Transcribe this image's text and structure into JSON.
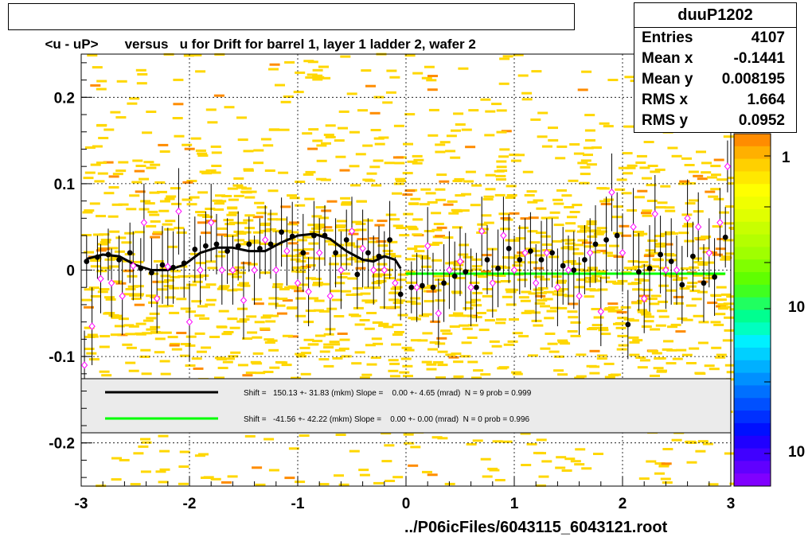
{
  "title": "<u - uP>       versus   u for Drift for barrel 1, layer 1 ladder 2, wafer 2",
  "stats": {
    "name": "duuP1202",
    "rows": [
      {
        "label": "Entries",
        "value": "4107"
      },
      {
        "label": "Mean x",
        "value": "-0.1441"
      },
      {
        "label": "Mean y",
        "value": "0.008195"
      },
      {
        "label": "RMS x",
        "value": "1.664"
      },
      {
        "label": "RMS y",
        "value": "0.0952"
      }
    ]
  },
  "footer": "../P06icFiles/6043115_6043121.root",
  "colors": {
    "scatter": "#ffd700",
    "hot": "#ff8c00",
    "profile": "#000000",
    "fit_black": "#000000",
    "fit_green": "#00ff00",
    "marker_open": "#ff00ff"
  },
  "chart_data": {
    "type": "scatter",
    "xlim": [
      -3,
      3
    ],
    "ylim": [
      -0.25,
      0.25
    ],
    "x_ticks": [
      -3,
      -2,
      -1,
      0,
      1,
      2,
      3
    ],
    "x_tick_labels": [
      "-3",
      "-2",
      "-1",
      "0",
      "1",
      "2",
      "3"
    ],
    "y_ticks": [
      -0.2,
      -0.1,
      0,
      0.1,
      0.2
    ],
    "y_tick_labels": [
      "-0.2",
      "-0.1",
      "0",
      "0.1",
      "0.2"
    ],
    "grid": true,
    "colorbar": {
      "labels": [
        "1",
        "10",
        "10"
      ]
    },
    "legend": [
      {
        "text": "Shift =   150.13 +- 31.83 (mkm) Slope =    0.00 +- 4.65 (mrad)  N = 9 prob = 0.999",
        "color": "#000000"
      },
      {
        "text": "Shift =   -41.56 +- 42.22 (mkm) Slope =    0.00 +- 0.00 (mrad)  N = 0 prob = 0.996",
        "color": "#00ff00"
      }
    ],
    "profile_filled": {
      "x": [
        -2.95,
        -2.85,
        -2.75,
        -2.65,
        -2.55,
        -2.45,
        -2.35,
        -2.25,
        -2.15,
        -2.05,
        -1.95,
        -1.85,
        -1.75,
        -1.65,
        -1.55,
        -1.45,
        -1.35,
        -1.25,
        -1.15,
        -1.05,
        -0.95,
        -0.85,
        -0.75,
        -0.65,
        -0.55,
        -0.45,
        -0.35,
        -0.25,
        -0.15,
        -0.05,
        0.05,
        0.15,
        0.25,
        0.35,
        0.45,
        0.55,
        0.65,
        0.75,
        0.85,
        0.95,
        1.05,
        1.15,
        1.25,
        1.35,
        1.45,
        1.55,
        1.65,
        1.75,
        1.85,
        1.95,
        2.05,
        2.15,
        2.25,
        2.35,
        2.45,
        2.55,
        2.65,
        2.75,
        2.85,
        2.95
      ],
      "y": [
        0.01,
        0.015,
        0.018,
        0.012,
        0.02,
        0.002,
        -0.003,
        0.006,
        0.003,
        0.008,
        0.024,
        0.028,
        0.03,
        0.022,
        0.028,
        0.03,
        0.025,
        0.03,
        0.044,
        0.039,
        0.02,
        0.04,
        0.04,
        0.02,
        0.035,
        -0.005,
        0.02,
        0.016,
        0.035,
        -0.028,
        -0.02,
        -0.018,
        -0.02,
        -0.015,
        -0.007,
        -0.002,
        -0.02,
        0.012,
        0.002,
        0.025,
        0.012,
        0.022,
        0.012,
        0.02,
        0.005,
        0.0,
        0.012,
        0.03,
        0.035,
        0.04,
        -0.063,
        -0.002,
        0.002,
        0.018,
        0.01,
        -0.017,
        0.016,
        -0.015,
        -0.008,
        0.038
      ],
      "err": [
        0.03,
        0.025,
        0.03,
        0.028,
        0.035,
        0.035,
        0.04,
        0.045,
        0.042,
        0.04,
        0.038,
        0.04,
        0.035,
        0.038,
        0.04,
        0.032,
        0.035,
        0.04,
        0.04,
        0.04,
        0.045,
        0.04,
        0.035,
        0.04,
        0.035,
        0.04,
        0.04,
        0.035,
        0.045,
        0.03,
        0.03,
        0.035,
        0.04,
        0.045,
        0.04,
        0.045,
        0.04,
        0.04,
        0.045,
        0.04,
        0.04,
        0.045,
        0.045,
        0.04,
        0.045,
        0.045,
        0.04,
        0.045,
        0.05,
        0.05,
        0.04,
        0.045,
        0.05,
        0.045,
        0.05,
        0.045,
        0.04,
        0.045,
        0.045,
        0.035
      ]
    },
    "profile_open": {
      "x": [
        -2.97,
        -2.9,
        -2.82,
        -2.72,
        -2.62,
        -2.52,
        -2.42,
        -2.3,
        -2.2,
        -2.1,
        -2.0,
        -1.9,
        -1.8,
        -1.7,
        -1.6,
        -1.5,
        -1.4,
        -1.3,
        -1.2,
        -1.1,
        -1.0,
        -0.9,
        -0.8,
        -0.7,
        -0.6,
        -0.5,
        -0.4,
        -0.3,
        -0.2,
        -0.1,
        0.1,
        0.2,
        0.3,
        0.4,
        0.5,
        0.6,
        0.7,
        0.8,
        0.9,
        1.0,
        1.1,
        1.2,
        1.3,
        1.4,
        1.5,
        1.6,
        1.7,
        1.8,
        1.9,
        2.0,
        2.1,
        2.2,
        2.3,
        2.4,
        2.5,
        2.6,
        2.7,
        2.8,
        2.9,
        2.97
      ],
      "y": [
        -0.11,
        -0.065,
        -0.01,
        -0.015,
        -0.03,
        0.005,
        0.055,
        -0.033,
        0.004,
        0.068,
        -0.06,
        0.0,
        0.055,
        0.0,
        0.0,
        -0.035,
        0.0,
        0.035,
        0.0,
        0.022,
        -0.015,
        -0.025,
        0.02,
        -0.03,
        0.0,
        0.045,
        0.025,
        0.0,
        0.0,
        -0.015,
        -0.02,
        0.028,
        -0.05,
        0.0,
        0.01,
        -0.02,
        0.045,
        -0.015,
        0.04,
        0.0,
        0.02,
        -0.015,
        0.02,
        -0.02,
        0.0,
        -0.03,
        0.02,
        -0.048,
        0.09,
        0.02,
        0.05,
        -0.033,
        0.065,
        0.0,
        0.0,
        0.06,
        0.05,
        0.02,
        0.055,
        0.12
      ],
      "err": [
        0.04,
        0.045,
        0.04,
        0.04,
        0.045,
        0.04,
        0.045,
        0.04,
        0.045,
        0.05,
        0.045,
        0.04,
        0.045,
        0.04,
        0.04,
        0.045,
        0.04,
        0.04,
        0.045,
        0.04,
        0.045,
        0.04,
        0.04,
        0.045,
        0.045,
        0.04,
        0.045,
        0.04,
        0.045,
        0.03,
        0.04,
        0.045,
        0.04,
        0.045,
        0.04,
        0.045,
        0.04,
        0.04,
        0.045,
        0.04,
        0.04,
        0.045,
        0.04,
        0.045,
        0.04,
        0.045,
        0.04,
        0.04,
        0.045,
        0.045,
        0.045,
        0.04,
        0.045,
        0.045,
        0.04,
        0.045,
        0.04,
        0.04,
        0.04,
        0.03
      ]
    },
    "fit_black": {
      "x": [
        -2.95,
        -2.8,
        -2.65,
        -2.5,
        -2.35,
        -2.2,
        -2.05,
        -1.9,
        -1.75,
        -1.6,
        -1.45,
        -1.3,
        -1.15,
        -1.0,
        -0.85,
        -0.7,
        -0.55,
        -0.4,
        -0.3,
        -0.2,
        -0.1,
        -0.05
      ],
      "y": [
        0.013,
        0.018,
        0.016,
        0.006,
        0.0,
        0.0,
        0.006,
        0.02,
        0.026,
        0.026,
        0.022,
        0.022,
        0.032,
        0.04,
        0.042,
        0.036,
        0.022,
        0.012,
        0.01,
        0.016,
        0.012,
        0.002
      ]
    },
    "fit_green": {
      "x": [
        0.0,
        2.95
      ],
      "y": [
        -0.0042,
        -0.0042
      ]
    }
  }
}
